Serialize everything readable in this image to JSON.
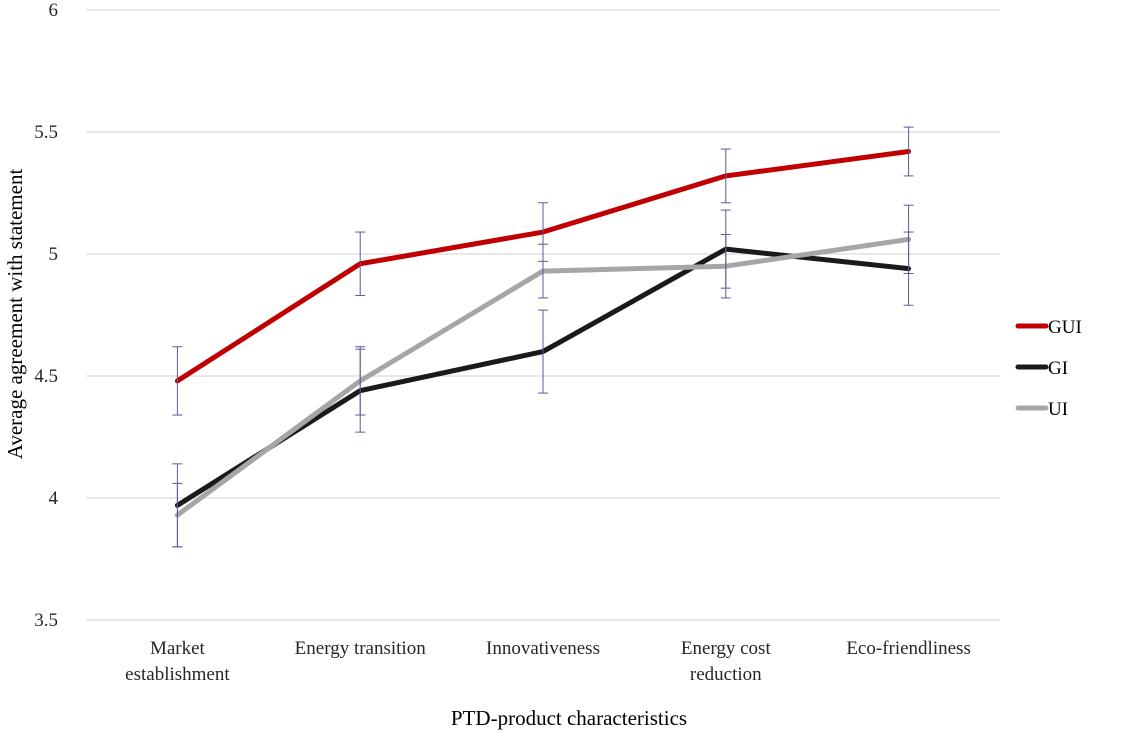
{
  "chart_data": {
    "type": "line",
    "xlabel": "PTD-product characteristics",
    "ylabel": "Average agreement with statement",
    "categories": [
      [
        "Market",
        "establishment"
      ],
      [
        "Energy transition"
      ],
      [
        "Innovativeness"
      ],
      [
        "Energy cost",
        "reduction"
      ],
      [
        "Eco-friendliness"
      ]
    ],
    "yticks": [
      "3.5",
      "4",
      "4.5",
      "5",
      "5.5",
      "6"
    ],
    "ylim": [
      3.5,
      6
    ],
    "grid": true,
    "legend_position": "right",
    "series": [
      {
        "name": "GUI",
        "color": "#c00000",
        "values": [
          4.48,
          4.96,
          5.09,
          5.32,
          5.42
        ],
        "err_low": [
          4.34,
          4.83,
          4.97,
          5.21,
          5.32
        ],
        "err_high": [
          4.62,
          5.09,
          5.21,
          5.43,
          5.52
        ]
      },
      {
        "name": "GI",
        "color": "#1a1a1a",
        "values": [
          3.97,
          4.44,
          4.6,
          5.02,
          4.94
        ],
        "err_low": [
          3.8,
          4.27,
          4.43,
          4.86,
          4.79
        ],
        "err_high": [
          4.14,
          4.61,
          4.77,
          5.18,
          5.09
        ]
      },
      {
        "name": "UI",
        "color": "#a6a6a6",
        "values": [
          3.93,
          4.48,
          4.93,
          4.95,
          5.06
        ],
        "err_low": [
          3.8,
          4.34,
          4.82,
          4.82,
          4.92
        ],
        "err_high": [
          4.06,
          4.62,
          5.04,
          5.08,
          5.2
        ]
      }
    ],
    "error_bar_color": "#5b5b9a"
  }
}
